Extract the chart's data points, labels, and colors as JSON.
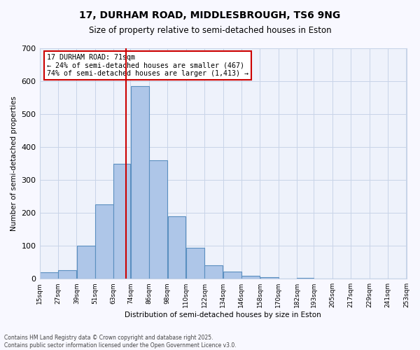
{
  "title_line1": "17, DURHAM ROAD, MIDDLESBROUGH, TS6 9NG",
  "title_line2": "Size of property relative to semi-detached houses in Eston",
  "xlabel": "Distribution of semi-detached houses by size in Eston",
  "ylabel": "Number of semi-detached properties",
  "bar_values": [
    20,
    25,
    100,
    225,
    350,
    585,
    360,
    190,
    95,
    40,
    22,
    10,
    5,
    0,
    3,
    0,
    0,
    0,
    0,
    0
  ],
  "bin_labels": [
    "15sqm",
    "27sqm",
    "39sqm",
    "51sqm",
    "63sqm",
    "74sqm",
    "86sqm",
    "98sqm",
    "110sqm",
    "122sqm",
    "134sqm",
    "146sqm",
    "158sqm",
    "170sqm",
    "182sqm",
    "193sqm",
    "205sqm",
    "217sqm",
    "229sqm",
    "241sqm",
    "253sqm"
  ],
  "bin_edges": [
    15,
    27,
    39,
    51,
    63,
    74,
    86,
    98,
    110,
    122,
    134,
    146,
    158,
    170,
    182,
    193,
    205,
    217,
    229,
    241,
    253
  ],
  "property_size": 71,
  "annotation_title": "17 DURHAM ROAD: 71sqm",
  "annotation_line2": "← 24% of semi-detached houses are smaller (467)",
  "annotation_line3": "74% of semi-detached houses are larger (1,413) →",
  "bar_color": "#aec6e8",
  "bar_edge_color": "#5a8fc0",
  "highlight_line_color": "#cc0000",
  "annotation_box_color": "#cc0000",
  "bg_color": "#eef2fb",
  "grid_color": "#c8d4e8",
  "ylim": [
    0,
    700
  ],
  "yticks": [
    0,
    100,
    200,
    300,
    400,
    500,
    600,
    700
  ],
  "footnote_line1": "Contains HM Land Registry data © Crown copyright and database right 2025.",
  "footnote_line2": "Contains public sector information licensed under the Open Government Licence v3.0."
}
